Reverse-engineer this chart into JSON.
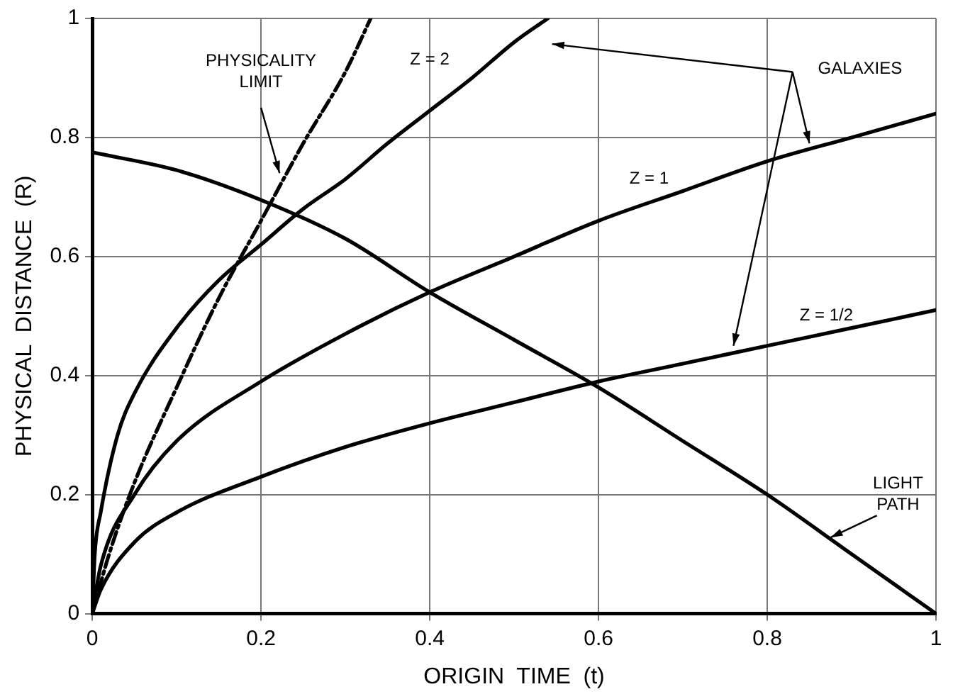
{
  "chart_data": {
    "type": "line",
    "xlabel": "ORIGIN  TIME  (t)",
    "ylabel": "PHYSICAL  DISTANCE  (R)",
    "xlim": [
      0,
      1
    ],
    "ylim": [
      0,
      1
    ],
    "xticks": [
      0,
      0.2,
      0.4,
      0.6,
      0.8,
      1
    ],
    "yticks": [
      0,
      0.2,
      0.4,
      0.6,
      0.8,
      1
    ],
    "grid": true,
    "legend": false,
    "marker": "none",
    "annotations": [
      "GALAXIES"
    ],
    "series": [
      {
        "name": "PHYSICALITY LIMIT",
        "color": "#000000",
        "line_style": "dashed",
        "x": [
          0,
          0.02,
          0.05,
          0.1,
          0.15,
          0.2,
          0.25,
          0.3,
          0.33
        ],
        "values": [
          0,
          0.1,
          0.22,
          0.38,
          0.53,
          0.66,
          0.79,
          0.91,
          1.0
        ]
      },
      {
        "name": "Z = 2",
        "color": "#000000",
        "line_style": "solid",
        "x": [
          0,
          0.003,
          0.01,
          0.03,
          0.05,
          0.1,
          0.15,
          0.2,
          0.25,
          0.3,
          0.35,
          0.4,
          0.45,
          0.5,
          0.54
        ],
        "values": [
          0,
          0.1,
          0.17,
          0.3,
          0.37,
          0.48,
          0.56,
          0.62,
          0.68,
          0.73,
          0.79,
          0.845,
          0.9,
          0.96,
          1.0
        ]
      },
      {
        "name": "Z = 1",
        "color": "#000000",
        "line_style": "solid",
        "x": [
          0,
          0.01,
          0.05,
          0.1,
          0.2,
          0.3,
          0.4,
          0.5,
          0.6,
          0.7,
          0.8,
          0.9,
          1
        ],
        "values": [
          0,
          0.08,
          0.2,
          0.29,
          0.39,
          0.47,
          0.54,
          0.6,
          0.66,
          0.71,
          0.76,
          0.8,
          0.84
        ]
      },
      {
        "name": "Z = 1/2",
        "color": "#000000",
        "line_style": "solid",
        "x": [
          0,
          0.01,
          0.05,
          0.1,
          0.2,
          0.3,
          0.4,
          0.5,
          0.6,
          0.7,
          0.8,
          0.9,
          1
        ],
        "values": [
          0,
          0.04,
          0.12,
          0.17,
          0.23,
          0.28,
          0.32,
          0.355,
          0.39,
          0.42,
          0.45,
          0.48,
          0.51
        ]
      },
      {
        "name": "LIGHT PATH",
        "color": "#000000",
        "line_style": "solid",
        "x": [
          0,
          0.1,
          0.2,
          0.3,
          0.4,
          0.5,
          0.6,
          0.7,
          0.8,
          0.9,
          1
        ],
        "values": [
          0.775,
          0.745,
          0.695,
          0.63,
          0.54,
          0.46,
          0.38,
          0.29,
          0.2,
          0.1,
          0
        ]
      }
    ]
  }
}
